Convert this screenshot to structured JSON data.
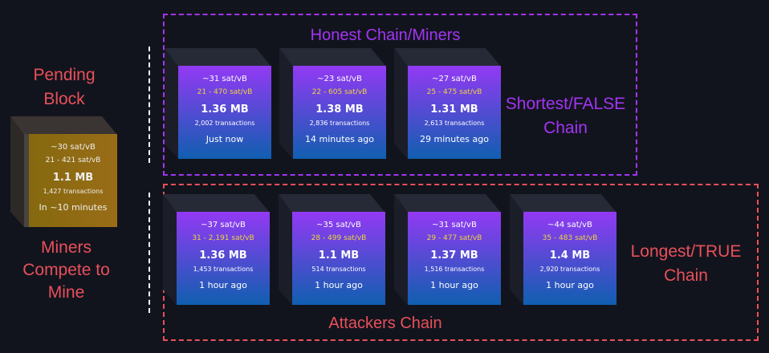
{
  "colors": {
    "background": "#12141d",
    "honest": "#a334f5",
    "attacker": "#e8505b",
    "fee_range": "#f1d33a"
  },
  "pending": {
    "title_line1": "Pending",
    "title_line2": "Block",
    "caption_line1": "Miners",
    "caption_line2": "Compete to",
    "caption_line3": "Mine",
    "block": {
      "median_fee": "~30 sat/vB",
      "fee_range": "21 - 421 sat/vB",
      "size": "1.1 MB",
      "tx_count": "1,427 transactions",
      "time": "In ~10 minutes"
    }
  },
  "honest": {
    "title": "Honest Chain/Miners",
    "side_label_line1": "Shortest/FALSE",
    "side_label_line2": "Chain",
    "blocks": [
      {
        "median_fee": "~31 sat/vB",
        "fee_range": "21 - 470 sat/vB",
        "size": "1.36 MB",
        "tx_count": "2,002 transactions",
        "time": "Just now"
      },
      {
        "median_fee": "~23 sat/vB",
        "fee_range": "22 - 605 sat/vB",
        "size": "1.38 MB",
        "tx_count": "2,836 transactions",
        "time": "14 minutes ago"
      },
      {
        "median_fee": "~27 sat/vB",
        "fee_range": "25 - 475 sat/vB",
        "size": "1.31 MB",
        "tx_count": "2,613 transactions",
        "time": "29 minutes ago"
      }
    ]
  },
  "attackers": {
    "title": "Attackers Chain",
    "side_label_line1": "Longest/TRUE",
    "side_label_line2": "Chain",
    "blocks": [
      {
        "median_fee": "~37 sat/vB",
        "fee_range": "31 - 2,191 sat/vB",
        "size": "1.36 MB",
        "tx_count": "1,453 transactions",
        "time": "1 hour ago"
      },
      {
        "median_fee": "~35 sat/vB",
        "fee_range": "28 - 499 sat/vB",
        "size": "1.1 MB",
        "tx_count": "514 transactions",
        "time": "1 hour ago"
      },
      {
        "median_fee": "~31 sat/vB",
        "fee_range": "29 - 477 sat/vB",
        "size": "1.37 MB",
        "tx_count": "1,516 transactions",
        "time": "1 hour ago"
      },
      {
        "median_fee": "~44 sat/vB",
        "fee_range": "35 - 483 sat/vB",
        "size": "1.4 MB",
        "tx_count": "2,920 transactions",
        "time": "1 hour ago"
      }
    ]
  }
}
